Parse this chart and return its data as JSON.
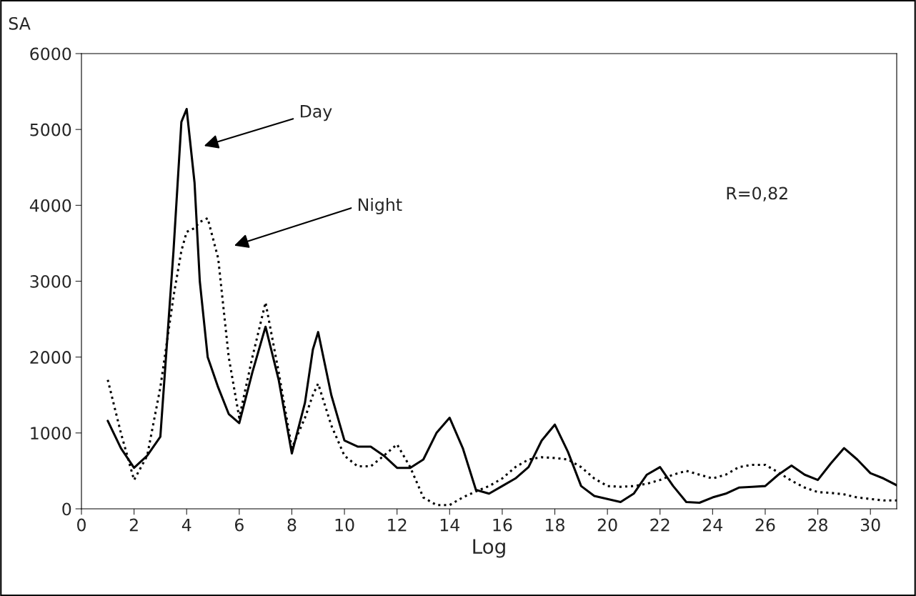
{
  "chart_data": {
    "type": "line",
    "xlabel": "Log",
    "ylabel": "SA",
    "xlim": [
      0,
      31
    ],
    "ylim": [
      0,
      6000
    ],
    "xticks": [
      0,
      2,
      4,
      6,
      8,
      10,
      12,
      14,
      16,
      18,
      20,
      22,
      24,
      26,
      28,
      30
    ],
    "yticks": [
      0,
      1000,
      2000,
      3000,
      4000,
      5000,
      6000
    ],
    "grid": false,
    "legend": false,
    "marker": "none",
    "x": [
      1,
      1.5,
      2,
      2.5,
      3,
      3.5,
      3.8,
      4,
      4.3,
      4.5,
      4.8,
      5.2,
      5.6,
      6,
      6.5,
      7,
      7.5,
      8,
      8.5,
      8.8,
      9,
      9.5,
      10,
      10.5,
      11,
      11.5,
      12,
      12.5,
      13,
      13.5,
      14,
      14.5,
      15,
      15.5,
      16,
      16.5,
      17,
      17.5,
      18,
      18.5,
      19,
      19.5,
      20,
      20.5,
      21,
      21.5,
      22,
      22.5,
      23,
      23.5,
      24,
      24.5,
      25,
      25.5,
      26,
      26.5,
      27,
      27.5,
      28,
      28.5,
      29,
      29.5,
      30,
      30.5,
      31
    ],
    "series": [
      {
        "color": "#000000",
        "line_style": "solid",
        "values": [
          1160,
          800,
          540,
          700,
          950,
          3400,
          5100,
          5270,
          4300,
          3000,
          2000,
          1600,
          1250,
          1130,
          1800,
          2400,
          1700,
          730,
          1400,
          2100,
          2330,
          1500,
          900,
          820,
          820,
          700,
          540,
          540,
          650,
          1000,
          1200,
          800,
          250,
          200,
          300,
          400,
          550,
          900,
          1110,
          750,
          300,
          170,
          130,
          90,
          200,
          450,
          550,
          300,
          90,
          80,
          150,
          200,
          280,
          290,
          300,
          450,
          570,
          450,
          380,
          600,
          800,
          650,
          470,
          400,
          310
        ]
      },
      {
        "color": "#000000",
        "line_style": "dotted",
        "values": [
          1700,
          1000,
          380,
          700,
          1600,
          2800,
          3400,
          3650,
          3700,
          3780,
          3830,
          3300,
          2000,
          1200,
          2000,
          2720,
          1800,
          800,
          1200,
          1500,
          1650,
          1100,
          700,
          560,
          560,
          700,
          850,
          550,
          150,
          50,
          50,
          150,
          230,
          300,
          400,
          550,
          650,
          680,
          670,
          650,
          550,
          400,
          300,
          290,
          300,
          330,
          380,
          450,
          500,
          450,
          400,
          450,
          550,
          580,
          580,
          480,
          370,
          280,
          220,
          210,
          190,
          150,
          130,
          110,
          110
        ]
      }
    ],
    "annotations": [
      "Day",
      "Night",
      "R=0,82"
    ]
  }
}
